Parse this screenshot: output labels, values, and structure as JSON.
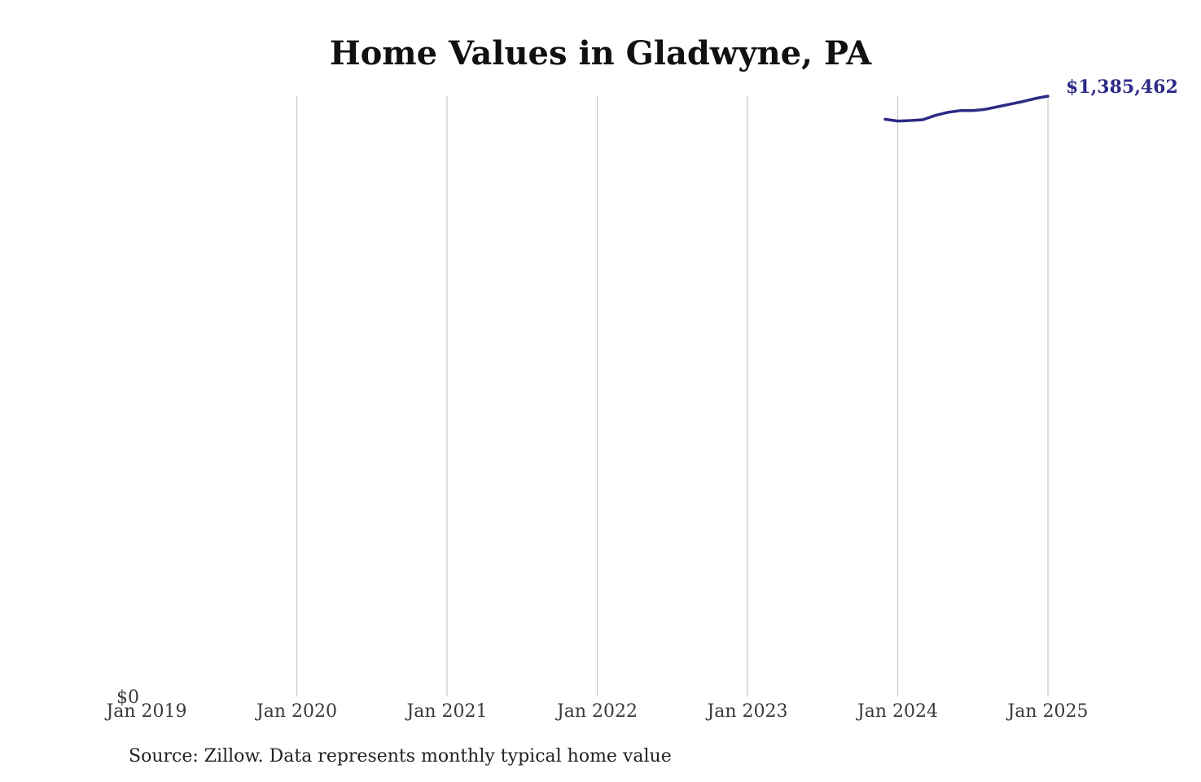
{
  "chart_data": {
    "type": "line",
    "title": "Home Values in Gladwyne, PA",
    "xlabel": "",
    "ylabel": "",
    "x_ticks": [
      "Jan 2019",
      "Jan 2020",
      "Jan 2021",
      "Jan 2022",
      "Jan 2023",
      "Jan 2024",
      "Jan 2025"
    ],
    "y_ticks": [
      {
        "value": 0,
        "label": "$0"
      }
    ],
    "xlim": [
      "2019-01",
      "2025-01"
    ],
    "ylim": [
      0,
      1385462
    ],
    "grid": "vertical",
    "series": [
      {
        "name": "",
        "color": "#2e2a86",
        "x": [
          "2023-12",
          "2024-01",
          "2024-02",
          "2024-03",
          "2024-04",
          "2024-05",
          "2024-06",
          "2024-07",
          "2024-08",
          "2024-09",
          "2024-10",
          "2024-11",
          "2024-12",
          "2025-01"
        ],
        "values": [
          1332000,
          1328000,
          1329000,
          1331000,
          1341000,
          1348000,
          1352000,
          1352000,
          1355000,
          1361000,
          1367000,
          1373000,
          1380000,
          1385462
        ]
      }
    ],
    "end_label": "$1,385,462"
  },
  "footer": {
    "source": "Source: Zillow. Data represents monthly typical home value"
  }
}
